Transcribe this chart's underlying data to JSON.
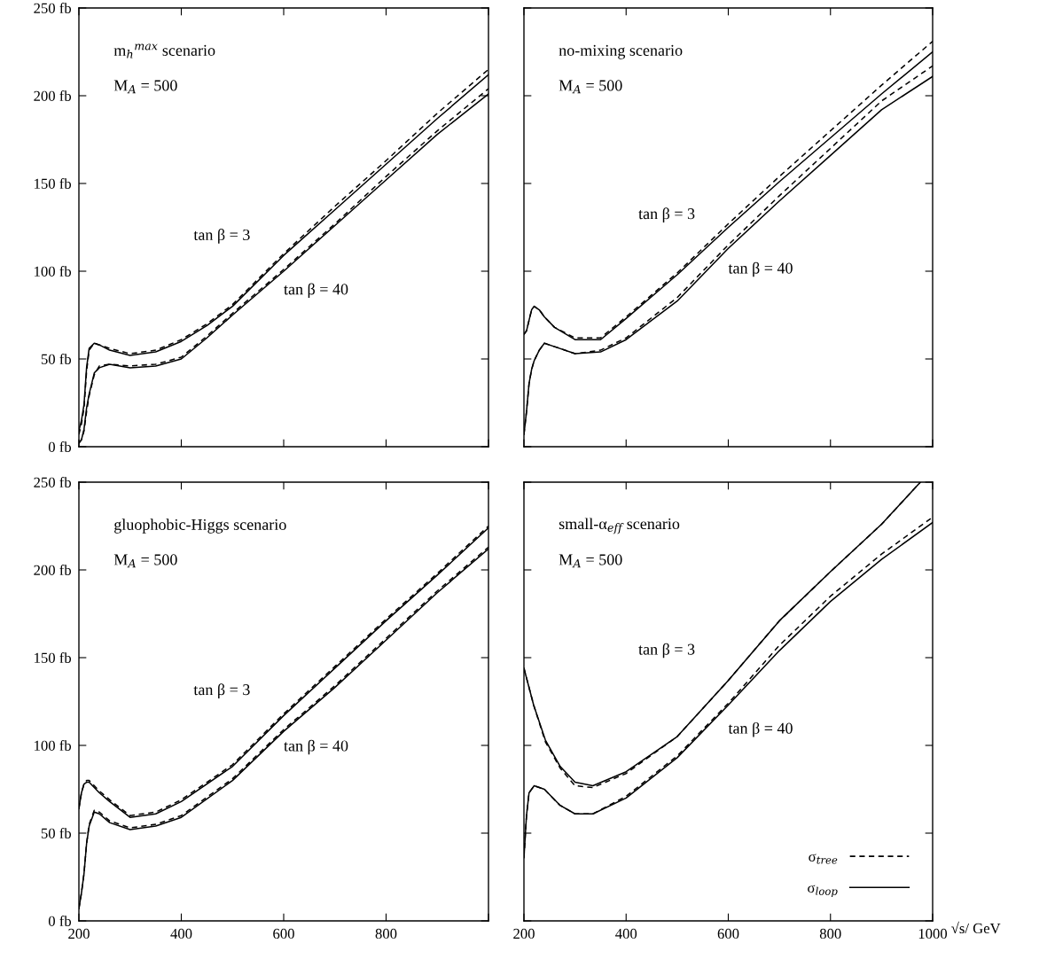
{
  "chart_data": [
    {
      "type": "line",
      "annotations": [
        "m$_{h}$$^{max}$ scenario",
        "M$_{A}$ = 500",
        "tan β = 3",
        "tan β = 40"
      ],
      "x": [
        200,
        205,
        210,
        215,
        220,
        230,
        240,
        260,
        300,
        350,
        400,
        450,
        500,
        600,
        700,
        800,
        900,
        1000
      ],
      "series": [
        {
          "color": "#000000",
          "line_style": "dashed",
          "values": [
            7,
            13,
            22,
            43,
            55,
            59,
            58,
            56,
            53,
            55,
            61,
            70,
            81,
            110,
            137,
            163,
            190,
            215
          ]
        },
        {
          "color": "#000000",
          "line_style": "solid",
          "values": [
            9,
            15,
            24,
            45,
            56,
            59,
            58,
            55,
            52,
            54,
            60,
            69,
            80,
            109,
            135,
            161,
            187,
            212
          ]
        },
        {
          "color": "#000000",
          "line_style": "dashed",
          "values": [
            2,
            4,
            9,
            20,
            29,
            41,
            46,
            47,
            46,
            47,
            51,
            63,
            76,
            101,
            127,
            154,
            180,
            204
          ]
        },
        {
          "color": "#000000",
          "line_style": "solid",
          "values": [
            2,
            4,
            10,
            22,
            30,
            42,
            45,
            47,
            45,
            46,
            50,
            62,
            75,
            100,
            126,
            152,
            178,
            201
          ]
        }
      ],
      "xlim": [
        200,
        1000
      ],
      "xticks": [
        {
          "value": 200,
          "label": null
        },
        {
          "value": 400,
          "label": null
        },
        {
          "value": 600,
          "label": null
        },
        {
          "value": 800,
          "label": null
        },
        {
          "value": 1000,
          "label": null
        }
      ],
      "ylim": [
        0,
        250
      ],
      "yticks": [
        {
          "value": 0,
          "label": "0 fb"
        },
        {
          "value": 50,
          "label": "50 fb"
        },
        {
          "value": 100,
          "label": "100 fb"
        },
        {
          "value": 150,
          "label": "150 fb"
        },
        {
          "value": 200,
          "label": "200 fb"
        },
        {
          "value": 250,
          "label": "250 fb"
        }
      ],
      "tick_labels": "y"
    },
    {
      "type": "line",
      "annotations": [
        "no-mixing scenario",
        "M$_{A}$ = 500",
        "tan β = 3",
        "tan β = 40"
      ],
      "x": [
        200,
        205,
        210,
        215,
        220,
        230,
        240,
        260,
        300,
        350,
        400,
        500,
        600,
        700,
        800,
        900,
        1000
      ],
      "series": [
        {
          "color": "#000000",
          "line_style": "dashed",
          "values": [
            64,
            66,
            72,
            78,
            80,
            78,
            74,
            68,
            62,
            62,
            74,
            99,
            127,
            154,
            180,
            206,
            231
          ]
        },
        {
          "color": "#000000",
          "line_style": "solid",
          "values": [
            64,
            66,
            72,
            78,
            80,
            78,
            74,
            68,
            61,
            61,
            73,
            98,
            125,
            151,
            176,
            201,
            225
          ]
        },
        {
          "color": "#000000",
          "line_style": "dashed",
          "values": [
            7,
            20,
            36,
            44,
            49,
            55,
            59,
            57,
            53,
            55,
            62,
            85,
            115,
            143,
            170,
            197,
            217
          ]
        },
        {
          "color": "#000000",
          "line_style": "solid",
          "values": [
            7,
            20,
            36,
            44,
            49,
            55,
            59,
            57,
            53,
            54,
            61,
            83,
            113,
            140,
            166,
            192,
            211
          ]
        }
      ],
      "xlim": [
        200,
        1000
      ],
      "xticks": [
        {
          "value": 200,
          "label": null
        },
        {
          "value": 400,
          "label": null
        },
        {
          "value": 600,
          "label": null
        },
        {
          "value": 800,
          "label": null
        },
        {
          "value": 1000,
          "label": null
        }
      ],
      "ylim": [
        0,
        250
      ],
      "yticks": [
        {
          "value": 0,
          "label": null
        },
        {
          "value": 50,
          "label": null
        },
        {
          "value": 100,
          "label": null
        },
        {
          "value": 150,
          "label": null
        },
        {
          "value": 200,
          "label": null
        },
        {
          "value": 250,
          "label": null
        }
      ],
      "tick_labels": false
    },
    {
      "type": "line",
      "annotations": [
        "gluophobic-Higgs scenario",
        "M$_{A}$ = 500",
        "tan β = 3",
        "tan β = 40"
      ],
      "x": [
        200,
        205,
        210,
        215,
        220,
        230,
        240,
        260,
        300,
        350,
        400,
        500,
        600,
        700,
        800,
        900,
        1000
      ],
      "series": [
        {
          "color": "#000000",
          "line_style": "dashed",
          "values": [
            64,
            73,
            78,
            80,
            80,
            77,
            74,
            69,
            60,
            62,
            69,
            89,
            118,
            145,
            172,
            198,
            225
          ]
        },
        {
          "color": "#000000",
          "line_style": "solid",
          "values": [
            64,
            73,
            78,
            79,
            79,
            76,
            73,
            68,
            59,
            61,
            68,
            88,
            117,
            144,
            171,
            197,
            224
          ]
        },
        {
          "color": "#000000",
          "line_style": "dashed",
          "values": [
            7,
            16,
            27,
            44,
            55,
            63,
            62,
            57,
            53,
            55,
            60,
            81,
            109,
            134,
            161,
            188,
            213
          ]
        },
        {
          "color": "#000000",
          "line_style": "solid",
          "values": [
            7,
            16,
            27,
            44,
            54,
            62,
            61,
            56,
            52,
            54,
            59,
            80,
            108,
            133,
            160,
            187,
            212
          ]
        }
      ],
      "xlim": [
        200,
        1000
      ],
      "xticks": [
        200,
        400,
        600,
        800,
        {
          "value": 1000,
          "label": null
        }
      ],
      "ylim": [
        0,
        250
      ],
      "yticks": [
        {
          "value": 0,
          "label": "0 fb"
        },
        {
          "value": 50,
          "label": "50 fb"
        },
        {
          "value": 100,
          "label": "100 fb"
        },
        {
          "value": 150,
          "label": "150 fb"
        },
        {
          "value": 200,
          "label": "200 fb"
        },
        {
          "value": 250,
          "label": "250 fb"
        }
      ]
    },
    {
      "type": "line",
      "xlabel": "√s/ GeV",
      "annotations": [
        "small-α$_{eff}$ scenario",
        "M$_{A}$ = 500",
        "tan β = 3",
        "tan β = 40"
      ],
      "x": [
        200,
        205,
        210,
        220,
        240,
        270,
        300,
        335,
        400,
        500,
        600,
        700,
        800,
        900,
        1000
      ],
      "series": [
        {
          "name": "σ$_{tree}$",
          "color": "#000000",
          "line_style": "dashed",
          "x": [
            200,
            219,
            242,
            271,
            300,
            335,
            400,
            500,
            600,
            700,
            800,
            900,
            976
          ],
          "values": [
            144,
            123,
            102,
            87,
            77,
            76,
            84,
            105,
            137,
            171,
            199,
            226,
            250
          ]
        },
        {
          "name": "σ$_{loop}$",
          "color": "#000000",
          "line_style": "solid",
          "x": [
            200,
            219,
            242,
            271,
            300,
            335,
            400,
            500,
            600,
            700,
            800,
            900,
            976
          ],
          "values": [
            144,
            123,
            103,
            88,
            79,
            77,
            85,
            105,
            137,
            171,
            199,
            226,
            250
          ]
        },
        {
          "color": "#000000",
          "line_style": "dashed",
          "values": [
            36,
            60,
            73,
            77,
            75,
            66,
            61,
            61,
            71,
            94,
            124,
            157,
            185,
            209,
            230
          ]
        },
        {
          "color": "#000000",
          "line_style": "solid",
          "values": [
            36,
            60,
            73,
            77,
            75,
            66,
            61,
            61,
            70,
            93,
            123,
            154,
            182,
            206,
            227
          ]
        }
      ],
      "xlim": [
        200,
        1000
      ],
      "xticks": [
        200,
        400,
        600,
        800,
        1000
      ],
      "ylim": [
        0,
        250
      ],
      "yticks": [
        {
          "value": 0,
          "label": null
        },
        {
          "value": 50,
          "label": null
        },
        {
          "value": 100,
          "label": null
        },
        {
          "value": 150,
          "label": null
        },
        {
          "value": 200,
          "label": null
        },
        {
          "value": 250,
          "label": null
        }
      ],
      "tick_labels": "x",
      "legend": "bottom right"
    }
  ]
}
